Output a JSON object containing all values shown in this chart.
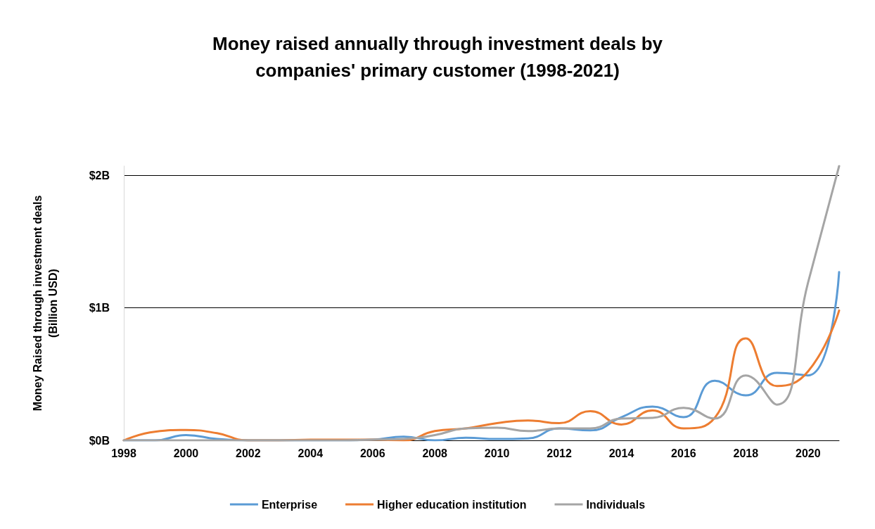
{
  "chart_data": {
    "type": "line",
    "title": "Money raised annually through investment deals by\ncompanies' primary customer (1998-2021)",
    "ylabel": "Money Raised through investment deals\n(Billion USD)",
    "x": [
      1998,
      1999,
      2000,
      2001,
      2002,
      2003,
      2004,
      2005,
      2006,
      2007,
      2008,
      2009,
      2010,
      2011,
      2012,
      2013,
      2014,
      2015,
      2016,
      2017,
      2018,
      2019,
      2020,
      2021
    ],
    "xlim": [
      1998,
      2021
    ],
    "xticks": [
      1998,
      2000,
      2002,
      2004,
      2006,
      2008,
      2010,
      2012,
      2014,
      2016,
      2018,
      2020
    ],
    "ylim": [
      0,
      2.07
    ],
    "yticks": [
      {
        "value": 0,
        "label": "$0B"
      },
      {
        "value": 1,
        "label": "$1B"
      },
      {
        "value": 2,
        "label": "$2B"
      }
    ],
    "grid": "y",
    "legend": "bottom",
    "marker": "none",
    "line_style": "solid",
    "series": [
      {
        "name": "Enterprise",
        "color": "#5b9bd5",
        "values": [
          0,
          0,
          0.04,
          0.01,
          0,
          0,
          0,
          0,
          0.005,
          0.028,
          0,
          0.02,
          0.01,
          0.015,
          0.09,
          0.075,
          0.175,
          0.255,
          0.175,
          0.45,
          0.34,
          0.51,
          0.49,
          1.27
        ]
      },
      {
        "name": "Higher education institution",
        "color": "#ed7d31",
        "values": [
          0,
          0.065,
          0.078,
          0.054,
          0,
          0,
          0.005,
          0.005,
          0.005,
          0,
          0.07,
          0.09,
          0.13,
          0.15,
          0.13,
          0.22,
          0.12,
          0.225,
          0.09,
          0.17,
          0.77,
          0.41,
          0.52,
          0.98
        ]
      },
      {
        "name": "Individuals",
        "color": "#a5a5a5",
        "values": [
          0,
          0,
          0,
          0,
          0,
          0,
          0,
          0,
          0.005,
          0.01,
          0.04,
          0.09,
          0.095,
          0.07,
          0.09,
          0.09,
          0.165,
          0.17,
          0.245,
          0.165,
          0.49,
          0.27,
          1.19,
          2.07
        ]
      }
    ]
  }
}
